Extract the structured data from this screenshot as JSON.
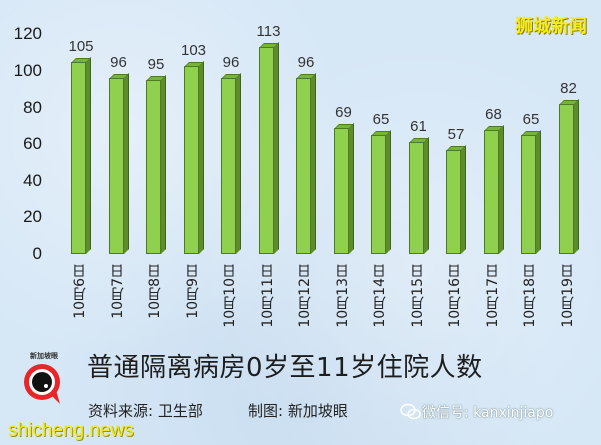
{
  "brand_top": "狮城新闻",
  "title": "普通隔离病房0岁至11岁住院人数",
  "source": "资料来源:  卫生部",
  "maker": "制图:  新加坡眼",
  "wechat": "微信号: kanxinjiapo",
  "watermark": "shicheng.news",
  "logo_text": "新加坡眼",
  "colors": {
    "bar_front": "#8fd14f",
    "bar_side": "#5d8c2c",
    "brand_yellow": "#f5ec1e",
    "background": "#d6e7f6"
  },
  "chart_data": {
    "type": "bar",
    "title": "普通隔离病房0岁至11岁住院人数",
    "xlabel": "",
    "ylabel": "",
    "ylim": [
      0,
      120
    ],
    "yticks": [
      0,
      20,
      40,
      60,
      80,
      100,
      120
    ],
    "grid": false,
    "legend": null,
    "categories": [
      "10月6日",
      "10月7日",
      "10月8日",
      "10月9日",
      "10月10日",
      "10月11日",
      "10月12日",
      "10月13日",
      "10月14日",
      "10月15日",
      "10月16日",
      "10月17日",
      "10月18日",
      "10月19日"
    ],
    "values": [
      105,
      96,
      95,
      103,
      96,
      113,
      96,
      69,
      65,
      61,
      57,
      68,
      65,
      82
    ]
  }
}
